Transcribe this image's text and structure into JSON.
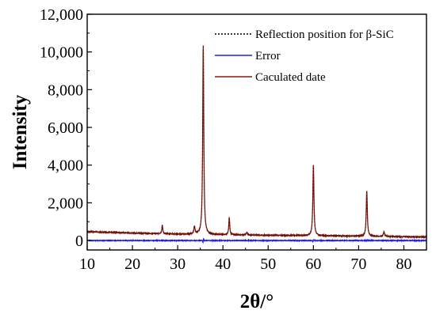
{
  "chart_data": {
    "type": "line",
    "xlabel": "2θ/°",
    "ylabel": "Intensity",
    "xlim": [
      10,
      85
    ],
    "ylim": [
      -500,
      12000
    ],
    "x_ticks": [
      10,
      20,
      30,
      40,
      50,
      60,
      70,
      80
    ],
    "y_ticks": [
      0,
      2000,
      4000,
      6000,
      8000,
      10000,
      12000
    ],
    "x_tick_labels": [
      "10",
      "20",
      "30",
      "40",
      "50",
      "60",
      "70",
      "80"
    ],
    "y_tick_labels": [
      "0",
      "2,000",
      "4,000",
      "6,000",
      "8,000",
      "10,000",
      "12,000"
    ],
    "grid": false,
    "legend_position": "top-right",
    "legend": {
      "reflection": "Reflection position for β-SiC",
      "error": "Error",
      "calculated": "Caculated date"
    },
    "series": [
      {
        "name": "Caculated date",
        "color": "#8b1a0e",
        "baseline": {
          "x": [
            10,
            20,
            30,
            40,
            50,
            60,
            70,
            85
          ],
          "y": [
            470,
            400,
            340,
            310,
            280,
            260,
            230,
            190
          ]
        },
        "peaks": [
          {
            "x": 26.6,
            "height": 450,
            "width": 0.25
          },
          {
            "x": 33.7,
            "height": 400,
            "width": 0.3
          },
          {
            "x": 35.65,
            "height": 10000,
            "width": 0.28
          },
          {
            "x": 41.4,
            "height": 900,
            "width": 0.25
          },
          {
            "x": 45.3,
            "height": 150,
            "width": 0.3
          },
          {
            "x": 60.0,
            "height": 3750,
            "width": 0.28
          },
          {
            "x": 71.8,
            "height": 2400,
            "width": 0.28
          },
          {
            "x": 75.6,
            "height": 250,
            "width": 0.3
          }
        ]
      },
      {
        "name": "Error",
        "color": "#1a1aff",
        "baseline": {
          "x": [
            10,
            85
          ],
          "y": [
            0,
            0
          ]
        },
        "spikes": [
          {
            "x": 35.65,
            "amplitude": 150
          },
          {
            "x": 60.0,
            "amplitude": 80
          },
          {
            "x": 71.8,
            "amplitude": 60
          }
        ]
      }
    ],
    "reflection_positions": [
      35.65,
      41.4,
      60.0,
      71.8,
      75.6
    ]
  }
}
